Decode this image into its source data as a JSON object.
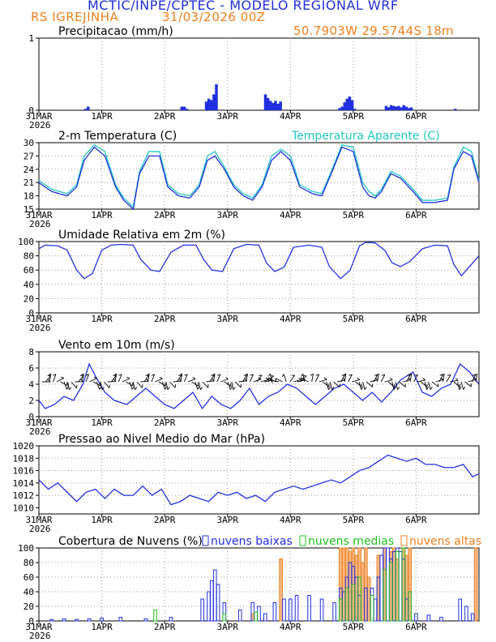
{
  "header": {
    "title": "MCTIC/INPE/CPTEC - MODELO REGIONAL WRF",
    "location": "RS IGREJINHA",
    "date": "31/03/2026 00Z",
    "coords": "50.7903W 29.5744S 18m"
  },
  "colors": {
    "blue": "#2030e0",
    "cyan": "#20c8c0",
    "green": "#20c020",
    "orange": "#f08020",
    "black": "#000000"
  },
  "x_axis": {
    "ticks": [
      {
        "label": "31MAR",
        "sub": "2026",
        "pos": 0
      },
      {
        "label": "1APR",
        "pos": 1
      },
      {
        "label": "2APR",
        "pos": 2
      },
      {
        "label": "3APR",
        "pos": 3
      },
      {
        "label": "4APR",
        "pos": 4
      },
      {
        "label": "5APR",
        "pos": 5
      },
      {
        "label": "6APR",
        "pos": 6
      }
    ],
    "range": [
      0,
      7
    ]
  },
  "chart_data": [
    {
      "type": "bar",
      "title": "Precipitacao (mm/h)",
      "ylim": [
        0,
        1
      ],
      "yticks": [
        "0",
        "1"
      ],
      "x": [
        0.74,
        0.78,
        2.27,
        2.31,
        2.35,
        2.66,
        2.7,
        2.74,
        2.78,
        2.82,
        3.6,
        3.64,
        3.68,
        3.72,
        3.76,
        3.8,
        3.84,
        4.78,
        4.82,
        4.86,
        4.9,
        4.94,
        4.98,
        5.02,
        5.52,
        5.56,
        5.6,
        5.64,
        5.68,
        5.72,
        5.76,
        5.8,
        5.84,
        5.88,
        5.92,
        6.62
      ],
      "values": [
        0.02,
        0.05,
        0.05,
        0.05,
        0.02,
        0.12,
        0.16,
        0.14,
        0.22,
        0.36,
        0.22,
        0.17,
        0.13,
        0.1,
        0.13,
        0.09,
        0.12,
        0.03,
        0.05,
        0.11,
        0.16,
        0.19,
        0.14,
        0.02,
        0.06,
        0.04,
        0.07,
        0.06,
        0.05,
        0.06,
        0.04,
        0.07,
        0.05,
        0.03,
        0.04,
        0.02
      ]
    },
    {
      "type": "line",
      "title": "2-m Temperatura (C)",
      "legend2": "Temperatura Aparente (C)",
      "ylim": [
        15,
        30
      ],
      "yticks": [
        "15",
        "18",
        "21",
        "24",
        "27",
        "30"
      ],
      "series": [
        {
          "name": "2-m Temperatura (C)",
          "x": [
            0,
            0.2,
            0.45,
            0.6,
            0.72,
            0.88,
            1.05,
            1.22,
            1.35,
            1.5,
            1.6,
            1.75,
            1.92,
            2.05,
            2.22,
            2.4,
            2.55,
            2.68,
            2.8,
            2.95,
            3.1,
            3.25,
            3.4,
            3.55,
            3.7,
            3.85,
            4,
            4.15,
            4.35,
            4.5,
            4.65,
            4.82,
            5,
            5.15,
            5.25,
            5.35,
            5.45,
            5.6,
            5.75,
            5.95,
            6.1,
            6.3,
            6.5,
            6.6,
            6.75,
            6.88,
            7
          ],
          "values": [
            21,
            19,
            18,
            20,
            26,
            29,
            27,
            20,
            17,
            15,
            23,
            27,
            27,
            20,
            18,
            17.5,
            20,
            26,
            27,
            24,
            20,
            18,
            17,
            20,
            26,
            28,
            26,
            20,
            18.5,
            18,
            23,
            29,
            28,
            20,
            18,
            17.5,
            19,
            23,
            22,
            19,
            16.5,
            16.5,
            17,
            24,
            28,
            27,
            21
          ]
        },
        {
          "name": "Temperatura Aparente (C)",
          "x": [
            0,
            0.2,
            0.45,
            0.6,
            0.72,
            0.88,
            1.05,
            1.22,
            1.35,
            1.5,
            1.6,
            1.75,
            1.92,
            2.05,
            2.22,
            2.4,
            2.55,
            2.68,
            2.8,
            2.95,
            3.1,
            3.25,
            3.4,
            3.55,
            3.7,
            3.85,
            4,
            4.15,
            4.35,
            4.5,
            4.65,
            4.82,
            5,
            5.15,
            5.25,
            5.35,
            5.45,
            5.6,
            5.75,
            5.95,
            6.1,
            6.3,
            6.5,
            6.6,
            6.75,
            6.88,
            7
          ],
          "values": [
            21.5,
            19.5,
            18.5,
            20.5,
            27,
            29.5,
            28,
            20.5,
            17.5,
            15.5,
            23.5,
            28,
            28,
            20.5,
            18.5,
            18,
            20.5,
            27,
            28,
            24.5,
            20.5,
            18.5,
            17.5,
            20.5,
            27,
            28.5,
            27,
            20.5,
            19,
            18.5,
            23.5,
            29.5,
            29,
            21,
            19,
            18,
            19.5,
            23.5,
            22.5,
            19.5,
            17,
            17,
            17.5,
            24.5,
            29,
            28,
            21.5
          ]
        }
      ]
    },
    {
      "type": "line",
      "title": "Umidade Relativa em 2m (%)",
      "ylim": [
        0,
        100
      ],
      "yticks": [
        "0",
        "20",
        "40",
        "60",
        "80",
        "100"
      ],
      "x": [
        0,
        0.1,
        0.3,
        0.45,
        0.6,
        0.72,
        0.85,
        1,
        1.15,
        1.3,
        1.5,
        1.62,
        1.78,
        1.92,
        2.1,
        2.3,
        2.5,
        2.62,
        2.75,
        2.92,
        3.1,
        3.3,
        3.5,
        3.62,
        3.75,
        3.9,
        4.05,
        4.3,
        4.5,
        4.62,
        4.8,
        4.95,
        5.1,
        5.2,
        5.35,
        5.5,
        5.62,
        5.75,
        5.9,
        6.1,
        6.3,
        6.5,
        6.6,
        6.72,
        6.85,
        7
      ],
      "values": [
        90,
        95,
        94,
        88,
        60,
        48,
        55,
        88,
        95,
        96,
        95,
        75,
        60,
        58,
        85,
        95,
        95,
        75,
        60,
        58,
        90,
        96,
        95,
        70,
        58,
        64,
        92,
        95,
        92,
        65,
        48,
        60,
        94,
        99,
        98,
        88,
        70,
        65,
        72,
        90,
        95,
        94,
        68,
        52,
        65,
        80
      ]
    },
    {
      "type": "line",
      "title": "Vento em 10m (m/s)",
      "ylim": [
        0,
        8
      ],
      "yticks": [
        "0",
        "2",
        "4",
        "6",
        "8"
      ],
      "x": [
        0,
        0.1,
        0.25,
        0.4,
        0.55,
        0.7,
        0.8,
        0.9,
        1.05,
        1.2,
        1.4,
        1.55,
        1.7,
        1.85,
        2,
        2.15,
        2.3,
        2.45,
        2.6,
        2.75,
        2.9,
        3.05,
        3.2,
        3.35,
        3.5,
        3.65,
        3.8,
        3.95,
        4.1,
        4.25,
        4.4,
        4.55,
        4.7,
        4.85,
        5,
        5.15,
        5.3,
        5.45,
        5.6,
        5.75,
        5.95,
        6.1,
        6.25,
        6.4,
        6.55,
        6.7,
        6.85,
        7
      ],
      "values": [
        2,
        1,
        1.5,
        2.5,
        2,
        4,
        6.5,
        5,
        3,
        2,
        1.5,
        2.5,
        3.5,
        2.5,
        1.5,
        1,
        2,
        3,
        1,
        2.5,
        1.5,
        1,
        2,
        3.5,
        1.5,
        2.5,
        3,
        4,
        3.5,
        2.5,
        1.5,
        2.5,
        3.5,
        4,
        3,
        2,
        3,
        1.8,
        3,
        4.5,
        5.5,
        3,
        2.5,
        3.5,
        4,
        6.5,
        5.5,
        4
      ]
    },
    {
      "type": "line",
      "title": "Pressao ao Nivel Medio do Mar (hPa)",
      "ylim": [
        1009,
        1020
      ],
      "yticks": [
        "1010",
        "1012",
        "1014",
        "1016",
        "1018",
        "1020"
      ],
      "x": [
        0,
        0.15,
        0.3,
        0.45,
        0.6,
        0.75,
        0.9,
        1.05,
        1.2,
        1.35,
        1.5,
        1.65,
        1.8,
        1.95,
        2.1,
        2.25,
        2.4,
        2.55,
        2.7,
        2.85,
        3,
        3.15,
        3.3,
        3.45,
        3.6,
        3.75,
        3.9,
        4.05,
        4.2,
        4.35,
        4.5,
        4.65,
        4.8,
        4.95,
        5.1,
        5.25,
        5.4,
        5.55,
        5.7,
        5.85,
        6,
        6.15,
        6.3,
        6.45,
        6.6,
        6.75,
        6.9,
        7
      ],
      "values": [
        1014.5,
        1013,
        1014,
        1012.5,
        1011,
        1012.5,
        1013,
        1011.5,
        1013,
        1012,
        1012,
        1013.5,
        1012,
        1013,
        1010.5,
        1011,
        1012,
        1011.5,
        1011,
        1012.5,
        1012,
        1012.5,
        1011.5,
        1012,
        1011,
        1012.5,
        1013,
        1013.5,
        1013,
        1013.5,
        1014,
        1014.5,
        1014,
        1015,
        1016,
        1016.5,
        1017.5,
        1018.5,
        1018,
        1017.5,
        1018,
        1017,
        1017,
        1016.5,
        1016.5,
        1017,
        1015,
        1015.5
      ]
    },
    {
      "type": "bar",
      "title": "Cobertura de Nuvens (%)",
      "ylim": [
        0,
        100
      ],
      "yticks": [
        "0",
        "20",
        "40",
        "60",
        "80",
        "100"
      ],
      "legend": [
        "nuvens baixas",
        "nuvens medias",
        "nuvens altas"
      ],
      "series": [
        {
          "name": "nuvens baixas",
          "x": [
            0.2,
            0.4,
            0.6,
            0.8,
            1.0,
            1.3,
            1.7,
            2.1,
            2.6,
            2.7,
            2.75,
            2.8,
            2.85,
            2.95,
            3.2,
            3.4,
            3.5,
            3.6,
            3.75,
            3.9,
            4.0,
            4.1,
            4.3,
            4.5,
            4.7,
            4.8,
            4.85,
            4.9,
            4.95,
            5.0,
            5.05,
            5.1,
            5.2,
            5.3,
            5.35,
            5.4,
            5.45,
            5.5,
            5.55,
            5.6,
            5.65,
            5.7,
            5.75,
            5.8,
            5.85,
            5.9,
            6.0,
            6.2,
            6.4,
            6.7,
            6.8,
            6.9
          ],
          "values": [
            2,
            3,
            2,
            3,
            4,
            5,
            3,
            5,
            30,
            40,
            55,
            70,
            50,
            25,
            15,
            25,
            20,
            10,
            25,
            30,
            30,
            35,
            35,
            30,
            25,
            45,
            40,
            60,
            80,
            75,
            60,
            35,
            45,
            45,
            30,
            60,
            90,
            100,
            100,
            85,
            95,
            100,
            95,
            85,
            30,
            40,
            10,
            8,
            5,
            30,
            20,
            10
          ]
        },
        {
          "name": "nuvens medias",
          "x": [
            1.85,
            2.95,
            3.45,
            4.8,
            4.9,
            5.0,
            5.1,
            5.3,
            5.5,
            5.6,
            5.7,
            5.8,
            5.9
          ],
          "values": [
            15,
            10,
            12,
            30,
            45,
            50,
            60,
            35,
            70,
            80,
            95,
            100,
            40
          ]
        },
        {
          "name": "nuvens altas",
          "x": [
            3.4,
            3.85,
            4.8,
            4.85,
            4.9,
            4.95,
            5.0,
            5.05,
            5.1,
            5.15,
            5.2,
            5.25,
            5.4,
            5.5,
            5.6,
            5.65,
            5.7,
            5.8,
            5.85,
            5.9,
            6.95
          ],
          "values": [
            10,
            85,
            100,
            100,
            100,
            95,
            100,
            90,
            100,
            80,
            100,
            60,
            90,
            100,
            95,
            100,
            85,
            100,
            90,
            100,
            100
          ]
        }
      ]
    }
  ]
}
